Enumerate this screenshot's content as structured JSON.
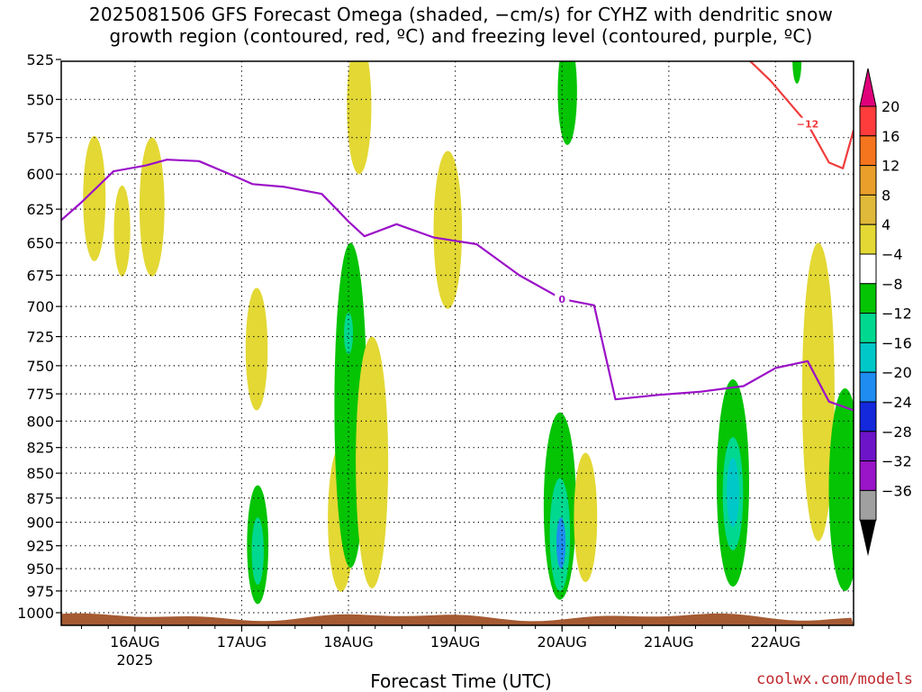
{
  "chart_data": {
    "type": "heatmap",
    "title": "2025081506 GFS Forecast Omega (shaded, −cm/s) for CYHZ with dendritic snow",
    "subtitle": "growth region (contoured, red, ºC) and freezing level (contoured, purple, ºC)",
    "xlabel": "Forecast Time (UTC)",
    "ylabel": "",
    "y_ticks": [
      "525",
      "550",
      "575",
      "600",
      "625",
      "650",
      "675",
      "700",
      "725",
      "750",
      "775",
      "800",
      "825",
      "850",
      "875",
      "900",
      "925",
      "950",
      "975",
      "1000"
    ],
    "x_ticks": [
      {
        "label": "16AUG",
        "sub": "2025",
        "day": 16
      },
      {
        "label": "17AUG",
        "sub": "",
        "day": 17
      },
      {
        "label": "18AUG",
        "sub": "",
        "day": 18
      },
      {
        "label": "19AUG",
        "sub": "",
        "day": 19
      },
      {
        "label": "20AUG",
        "sub": "",
        "day": 20
      },
      {
        "label": "21AUG",
        "sub": "",
        "day": 21
      },
      {
        "label": "22AUG",
        "sub": "",
        "day": 22
      }
    ],
    "x_range": [
      15.31,
      22.73
    ],
    "y_range_hpa": [
      510,
      1000
    ],
    "y_scale": "log-pressure",
    "grid": true,
    "colorbar": {
      "labels": [
        "20",
        "16",
        "12",
        "8",
        "4",
        "−4",
        "−8",
        "−12",
        "−16",
        "−20",
        "−24",
        "−28",
        "−32",
        "−36"
      ],
      "colors": [
        "#ff3c3c",
        "#f5741e",
        "#ea9f2a",
        "#e1b93a",
        "#e3d834",
        "#ffffff",
        "#04c404",
        "#00d890",
        "#00c8c8",
        "#1e8cf0",
        "#1428dc",
        "#6e14c8",
        "#9a14c8",
        "#a0a0a0"
      ],
      "top_color": "#e0007a",
      "bottom_color": "#000000"
    },
    "contours": [
      {
        "name": "0",
        "color": "#9b10c8",
        "label": "0",
        "points": [
          [
            15.31,
            633
          ],
          [
            15.5,
            620
          ],
          [
            15.8,
            598
          ],
          [
            16.1,
            594
          ],
          [
            16.3,
            590
          ],
          [
            16.6,
            591
          ],
          [
            16.95,
            602
          ],
          [
            17.1,
            607
          ],
          [
            17.4,
            609
          ],
          [
            17.75,
            614
          ],
          [
            18.0,
            634
          ],
          [
            18.15,
            645
          ],
          [
            18.45,
            636
          ],
          [
            18.8,
            646
          ],
          [
            19.2,
            651
          ],
          [
            19.6,
            675
          ],
          [
            20.0,
            694
          ],
          [
            20.3,
            699
          ],
          [
            20.5,
            780
          ],
          [
            20.9,
            776
          ],
          [
            21.3,
            773
          ],
          [
            21.7,
            768
          ],
          [
            22.0,
            752
          ],
          [
            22.3,
            746
          ],
          [
            22.5,
            782
          ],
          [
            22.73,
            790
          ]
        ]
      },
      {
        "name": "-12",
        "color": "#f03c3c",
        "label": "−12",
        "points": [
          [
            19.6,
            516
          ],
          [
            20.2,
            516
          ],
          [
            20.8,
            516
          ],
          [
            21.6,
            516
          ],
          [
            21.95,
            538
          ],
          [
            22.3,
            566
          ],
          [
            22.5,
            592
          ],
          [
            22.63,
            596
          ],
          [
            22.73,
            570
          ]
        ]
      }
    ],
    "omega_regions": [
      {
        "t": 16.16,
        "p0": 575,
        "p1": 676,
        "v": 4
      },
      {
        "t": 15.62,
        "p0": 574,
        "p1": 664,
        "v": 4
      },
      {
        "t": 15.88,
        "p0": 608,
        "p1": 676,
        "v": 4
      },
      {
        "t": 17.14,
        "p0": 685,
        "p1": 790,
        "v": 4
      },
      {
        "t": 17.15,
        "p0": 862,
        "p1": 990,
        "v": -8
      },
      {
        "t": 17.15,
        "p0": 895,
        "p1": 968,
        "v": -12
      },
      {
        "t": 17.93,
        "p0": 823,
        "p1": 976,
        "v": 4
      },
      {
        "t": 18.02,
        "p0": 650,
        "p1": 949,
        "v": -8
      },
      {
        "t": 18.0,
        "p0": 705,
        "p1": 740,
        "v": -12
      },
      {
        "t": 18.22,
        "p0": 725,
        "p1": 972,
        "v": 4
      },
      {
        "t": 18.93,
        "p0": 584,
        "p1": 702,
        "v": 4
      },
      {
        "t": 18.1,
        "p0": 512,
        "p1": 600,
        "v": 4
      },
      {
        "t": 19.98,
        "p0": 792,
        "p1": 985,
        "v": -8
      },
      {
        "t": 19.98,
        "p0": 855,
        "p1": 975,
        "v": -12
      },
      {
        "t": 19.99,
        "p0": 895,
        "p1": 950,
        "v": -20
      },
      {
        "t": 20.22,
        "p0": 830,
        "p1": 965,
        "v": 4
      },
      {
        "t": 20.05,
        "p0": 512,
        "p1": 580,
        "v": -8
      },
      {
        "t": 21.6,
        "p0": 762,
        "p1": 970,
        "v": -8
      },
      {
        "t": 21.6,
        "p0": 815,
        "p1": 930,
        "v": -12
      },
      {
        "t": 21.6,
        "p0": 835,
        "p1": 905,
        "v": -16
      },
      {
        "t": 22.4,
        "p0": 650,
        "p1": 920,
        "v": 4
      },
      {
        "t": 22.65,
        "p0": 770,
        "p1": 975,
        "v": -8
      },
      {
        "t": 22.2,
        "p0": 512,
        "p1": 540,
        "v": -8
      }
    ],
    "terrain_color": "#a55a32"
  },
  "credit": "coolwx.com/models"
}
